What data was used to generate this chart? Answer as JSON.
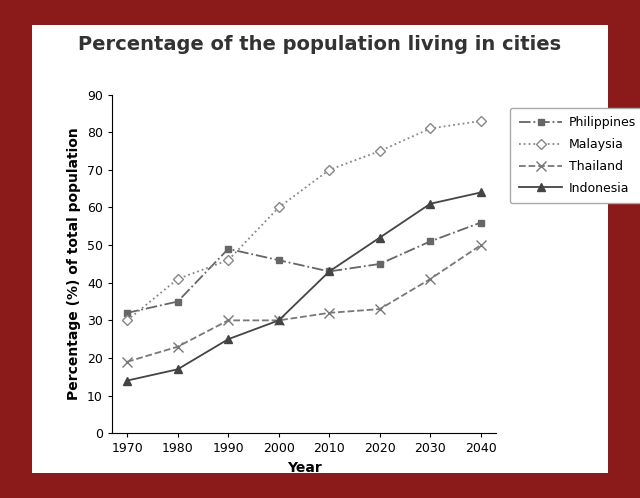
{
  "title": "Percentage of the population living in cities",
  "xlabel": "Year",
  "ylabel": "Percentage (%) of total population",
  "years": [
    1970,
    1980,
    1990,
    2000,
    2010,
    2020,
    2030,
    2040
  ],
  "philippines": [
    32,
    35,
    49,
    46,
    43,
    45,
    51,
    56
  ],
  "malaysia": [
    30,
    41,
    46,
    60,
    70,
    75,
    81,
    83
  ],
  "thailand": [
    19,
    23,
    30,
    30,
    32,
    33,
    41,
    50
  ],
  "indonesia": [
    14,
    17,
    25,
    30,
    43,
    52,
    61,
    64
  ],
  "series": [
    {
      "name": "Philippines",
      "key": "philippines",
      "color": "#666666",
      "linestyle": "-.",
      "marker": "s",
      "markersize": 5,
      "mfc": "#666666"
    },
    {
      "name": "Malaysia",
      "key": "malaysia",
      "color": "#888888",
      "linestyle": ":",
      "marker": "D",
      "markersize": 5,
      "mfc": "white"
    },
    {
      "name": "Thailand",
      "key": "thailand",
      "color": "#777777",
      "linestyle": "--",
      "marker": "x",
      "markersize": 7,
      "mfc": "#777777"
    },
    {
      "name": "Indonesia",
      "key": "indonesia",
      "color": "#444444",
      "linestyle": "-",
      "marker": "^",
      "markersize": 6,
      "mfc": "#444444"
    }
  ],
  "ylim": [
    0,
    90
  ],
  "yticks": [
    0,
    10,
    20,
    30,
    40,
    50,
    60,
    70,
    80,
    90
  ],
  "border_color": "#8b1a1a",
  "bg_white": "#ffffff",
  "title_fontsize": 14,
  "axis_label_fontsize": 10,
  "tick_fontsize": 9,
  "legend_fontsize": 9,
  "border_thickness": 0.055
}
